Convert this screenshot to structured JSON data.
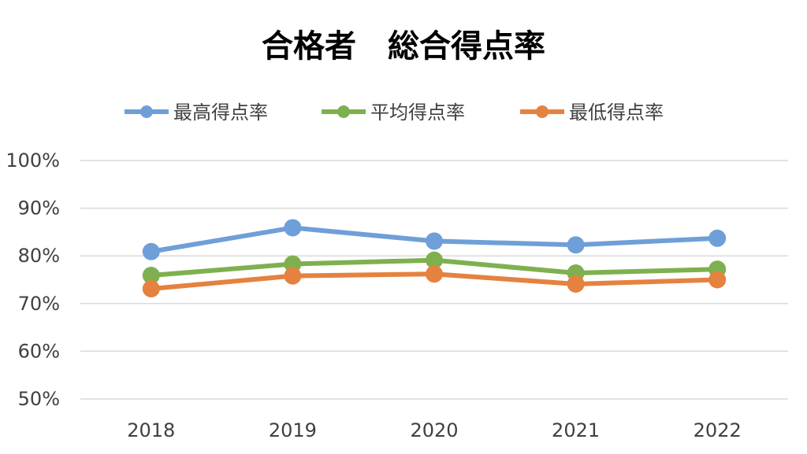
{
  "chart_data": {
    "type": "line",
    "title": "合格者　総合得点率",
    "categories": [
      "2018",
      "2019",
      "2020",
      "2021",
      "2022"
    ],
    "ylim": [
      0.5,
      1.0
    ],
    "y_ticks": [
      "50%",
      "60%",
      "70%",
      "80%",
      "90%",
      "100%"
    ],
    "y_tick_values": [
      0.5,
      0.6,
      0.7,
      0.8,
      0.9,
      1.0
    ],
    "grid": true,
    "legend_position": "top",
    "series": [
      {
        "name": "最高得点率",
        "color": "#6f9fd8",
        "values": [
          0.809,
          0.859,
          0.831,
          0.823,
          0.837
        ]
      },
      {
        "name": "平均得点率",
        "color": "#7fb04f",
        "values": [
          0.759,
          0.783,
          0.791,
          0.764,
          0.772
        ]
      },
      {
        "name": "最低得点率",
        "color": "#e5823f",
        "values": [
          0.731,
          0.758,
          0.762,
          0.741,
          0.75
        ]
      }
    ]
  }
}
